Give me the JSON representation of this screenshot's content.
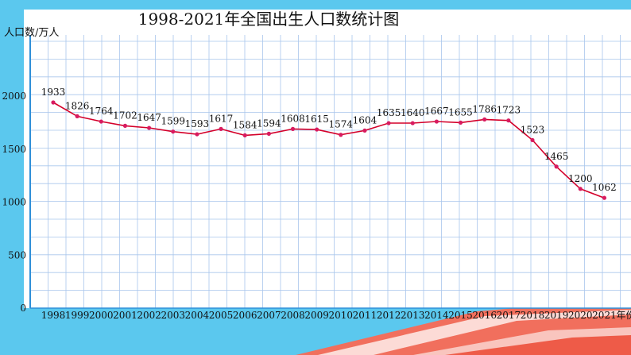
{
  "chart_data": {
    "type": "line",
    "title": "1998-2021年全国出生人口数统计图",
    "ylabel": "人口数/万人",
    "xlabel_suffix": "年份",
    "ylim": [
      0,
      2000
    ],
    "yticks": [
      "0",
      "500",
      "1000",
      "1500",
      "2000"
    ],
    "grid": true,
    "series": [
      {
        "x": [
          "1998",
          "1999",
          "2000",
          "2001",
          "2002",
          "2003",
          "2004",
          "2005",
          "2006",
          "2007",
          "2008",
          "2009",
          "2010",
          "2011",
          "2012",
          "2013",
          "2014",
          "2015",
          "2016",
          "2017",
          "2018",
          "2019",
          "2020",
          "2021"
        ],
        "values": [
          1933,
          1826,
          1764,
          1702,
          1647,
          1599,
          1593,
          1617,
          1584,
          1594,
          1608,
          1615,
          1574,
          1604,
          1635,
          1640,
          1667,
          1655,
          1786,
          1723,
          1523,
          1465,
          1200,
          1062
        ],
        "point_values": [
          1940,
          1810,
          1760,
          1720,
          1700,
          1665,
          1640,
          1690,
          1630,
          1645,
          1690,
          1685,
          1635,
          1675,
          1745,
          1745,
          1760,
          1750,
          1780,
          1770,
          1585,
          1335,
          1125,
          1040
        ],
        "labels": [
          "1933",
          "1826",
          "1764",
          "1702",
          "1647",
          "1599",
          "1593",
          "1617",
          "1584",
          "1594",
          "1608",
          "1615",
          "1574",
          "1604",
          "1635",
          "1640",
          "1667",
          "1655",
          "1786",
          "1723",
          "1523",
          "1465",
          "1200",
          "1062"
        ]
      }
    ],
    "highlight_years": [
      "1999",
      "2001",
      "2003",
      "2005",
      "2007",
      "2009",
      "2011",
      "2013",
      "2015",
      "2017",
      "2019",
      "2021"
    ],
    "colors": {
      "line": "#d4002a",
      "marker": "#d81b60",
      "grid": "#a9c6ec",
      "highlight_tick": "#c8102e",
      "normal_tick": "#111111",
      "y_axis": "#2f8fd8",
      "plot_bg": "#ffffff",
      "page_bg": "#5bc8ee"
    }
  }
}
